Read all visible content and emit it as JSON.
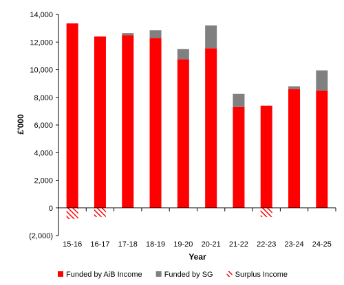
{
  "chart_data": {
    "type": "bar",
    "stacked": true,
    "categories": [
      "15-16",
      "16-17",
      "17-18",
      "18-19",
      "19-20",
      "20-21",
      "21-22",
      "22-23",
      "23-24",
      "24-25"
    ],
    "series": [
      {
        "name": "Funded by AiB Income",
        "color": "#ff0000",
        "pattern": "solid",
        "values": [
          13350,
          12400,
          12500,
          12300,
          10750,
          11550,
          7300,
          7400,
          8600,
          8500
        ]
      },
      {
        "name": "Funded by SG",
        "color": "#808080",
        "pattern": "solid",
        "values": [
          0,
          0,
          150,
          550,
          750,
          1650,
          950,
          0,
          200,
          1450
        ]
      },
      {
        "name": "Surplus Income",
        "color": "#ff0000",
        "pattern": "hatch",
        "values": [
          -800,
          -650,
          0,
          0,
          0,
          0,
          0,
          -650,
          0,
          0
        ]
      }
    ],
    "xlabel": "Year",
    "ylabel": "£'000",
    "ylim": [
      -2000,
      14000
    ],
    "yticks": [
      -2000,
      0,
      2000,
      4000,
      6000,
      8000,
      10000,
      12000,
      14000
    ],
    "ytick_labels": [
      "(2,000)",
      "0",
      "2,000",
      "4,000",
      "6,000",
      "8,000",
      "10,000",
      "12,000",
      "14,000"
    ],
    "grid": false,
    "legend_position": "bottom"
  }
}
